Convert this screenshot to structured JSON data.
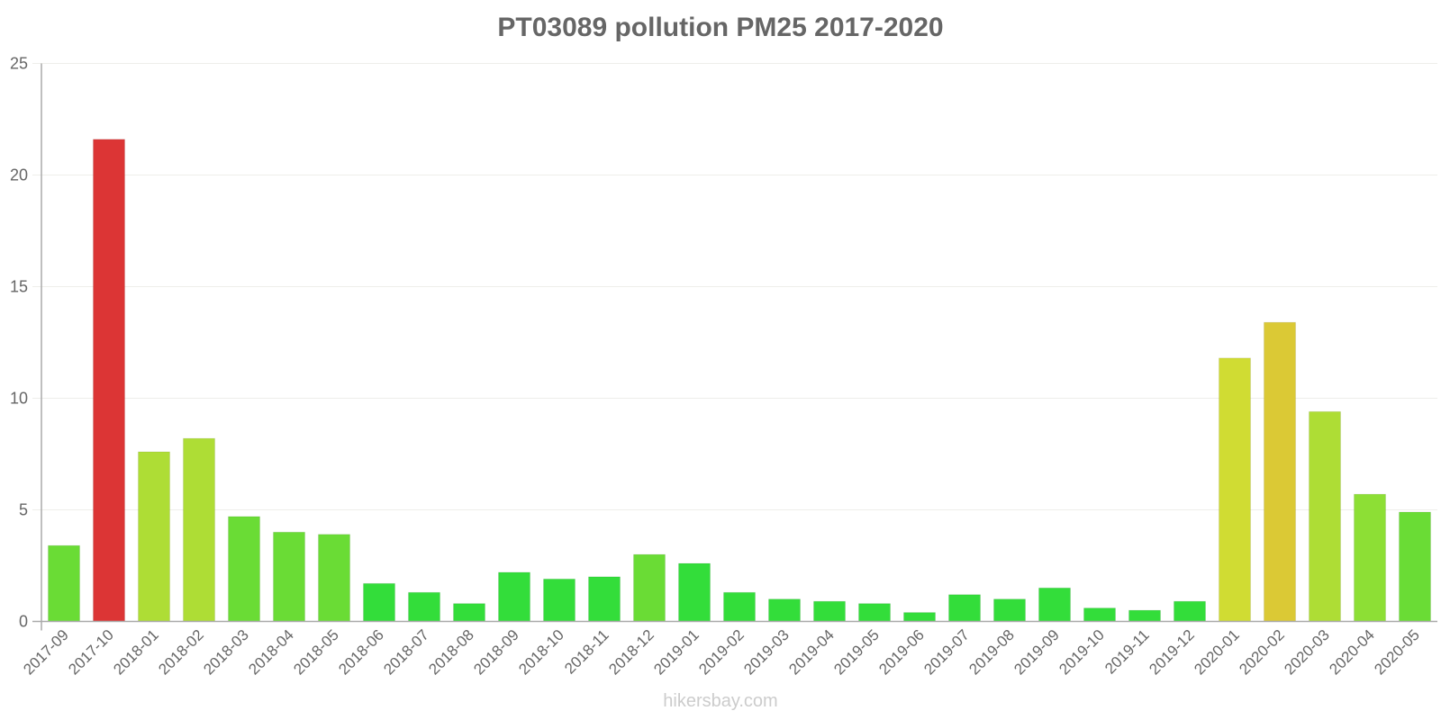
{
  "title": "PT03089 pollution PM25 2017-2020",
  "watermark": "hikersbay.com",
  "chart_data": {
    "type": "bar",
    "title": "PT03089 pollution PM25 2017-2020",
    "xlabel": "",
    "ylabel": "",
    "ylim": [
      0,
      25
    ],
    "yticks": [
      0,
      5,
      10,
      15,
      20,
      25
    ],
    "grid": true,
    "legend": null,
    "categories": [
      "2017-09",
      "2017-10",
      "2018-01",
      "2018-02",
      "2018-03",
      "2018-04",
      "2018-05",
      "2018-06",
      "2018-07",
      "2018-08",
      "2018-09",
      "2018-10",
      "2018-11",
      "2018-12",
      "2019-01",
      "2019-02",
      "2019-03",
      "2019-04",
      "2019-05",
      "2019-06",
      "2019-07",
      "2019-08",
      "2019-09",
      "2019-10",
      "2019-11",
      "2019-12",
      "2020-01",
      "2020-02",
      "2020-03",
      "2020-04",
      "2020-05"
    ],
    "values": [
      3.4,
      21.6,
      7.6,
      8.2,
      4.7,
      4.0,
      3.9,
      1.7,
      1.3,
      0.8,
      2.2,
      1.9,
      2.0,
      3.0,
      2.6,
      1.3,
      1.0,
      0.9,
      0.8,
      0.4,
      1.2,
      1.0,
      1.5,
      0.6,
      0.5,
      0.9,
      11.8,
      13.4,
      9.4,
      5.7,
      4.9
    ],
    "colors": [
      "#6adc35",
      "#dc3535",
      "#aedd35",
      "#aedd35",
      "#6adc35",
      "#6adc35",
      "#6adc35",
      "#33dd3a",
      "#33dd3a",
      "#33dd3a",
      "#33dd3a",
      "#33dd3a",
      "#33dd3a",
      "#6adc35",
      "#33dd3a",
      "#33dd3a",
      "#33dd3a",
      "#33dd3a",
      "#33dd3a",
      "#33dd3a",
      "#33dd3a",
      "#33dd3a",
      "#33dd3a",
      "#33dd3a",
      "#33dd3a",
      "#33dd3a",
      "#d0dc33",
      "#dbc935",
      "#aedd35",
      "#8ddf35",
      "#6adc35"
    ]
  },
  "colors": {
    "title": "#666666",
    "axis": "#aaaaaa",
    "grid": "#eeeeea",
    "watermark": "#cccccc"
  }
}
